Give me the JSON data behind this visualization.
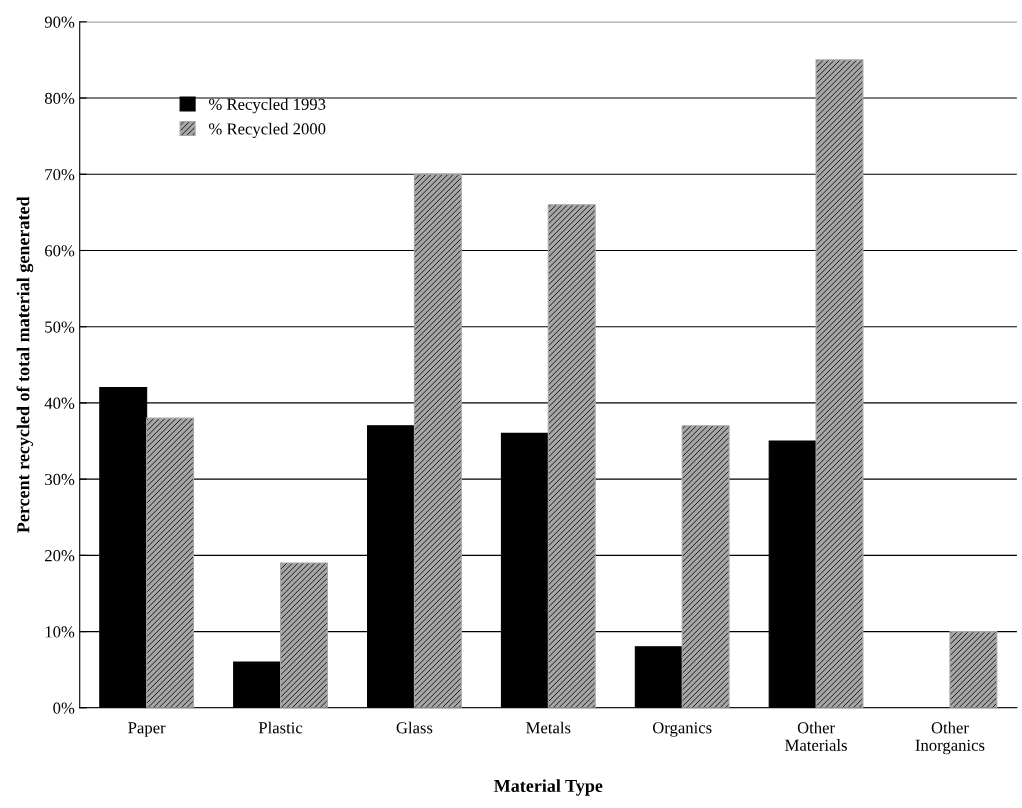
{
  "chart_data": {
    "type": "bar",
    "xlabel": "Material Type",
    "ylabel": "Percent recycled of total material generated",
    "categories": [
      "Paper",
      "Plastic",
      "Glass",
      "Metals",
      "Organics",
      "Other\nMaterials",
      "Other\nInorganics"
    ],
    "series": [
      {
        "name": "% Recycled 1993",
        "color": "#000000",
        "values": [
          42,
          6,
          37,
          36,
          8,
          35,
          null
        ]
      },
      {
        "name": "% Recycled 2000",
        "color": "#a6a6a6",
        "values": [
          38,
          19,
          70,
          66,
          37,
          85,
          10
        ]
      }
    ],
    "ylim": [
      0,
      90
    ],
    "yticks": [
      {
        "value": 0,
        "label": "0%"
      },
      {
        "value": 10,
        "label": "10%"
      },
      {
        "value": 20,
        "label": "20%"
      },
      {
        "value": 30,
        "label": "30%"
      },
      {
        "value": 40,
        "label": "40%"
      },
      {
        "value": 50,
        "label": "50%"
      },
      {
        "value": 60,
        "label": "60%"
      },
      {
        "value": 70,
        "label": "70%"
      },
      {
        "value": 80,
        "label": "80%"
      },
      {
        "value": 90,
        "label": "90%"
      }
    ],
    "grid": "y",
    "legend": "top left"
  }
}
